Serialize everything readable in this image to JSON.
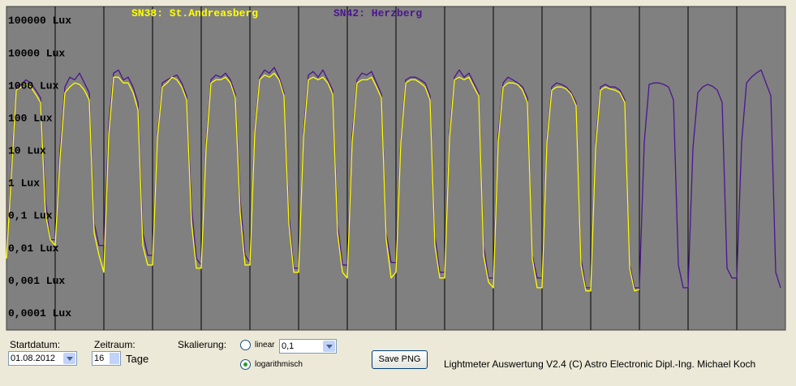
{
  "chart_data": {
    "type": "line",
    "log_scale": true,
    "grid": true,
    "ylim": [
      5e-05,
      450000
    ],
    "yticks": [
      {
        "value": 100000,
        "label": "100000 Lux"
      },
      {
        "value": 10000,
        "label": "10000 Lux"
      },
      {
        "value": 1000,
        "label": "1000 Lux"
      },
      {
        "value": 100,
        "label": "100 Lux"
      },
      {
        "value": 10,
        "label": "10 Lux"
      },
      {
        "value": 1,
        "label": "1 Lux"
      },
      {
        "value": 0.1,
        "label": "0,1 Lux"
      },
      {
        "value": 0.01,
        "label": "0,01 Lux"
      },
      {
        "value": 0.001,
        "label": "0,001 Lux"
      },
      {
        "value": 0.0001,
        "label": "0,0001 Lux"
      }
    ],
    "series": [
      {
        "name": "SN42: Herzberg",
        "color": "#4b1590",
        "values": [
          0.01,
          5,
          1500,
          1800,
          2500,
          2000,
          1200,
          700,
          0.5,
          0.03,
          0.03,
          20,
          1500,
          3000,
          2500,
          4000,
          2000,
          1000,
          0.1,
          0.02,
          0.02,
          100,
          4000,
          5000,
          2500,
          3000,
          1500,
          500,
          0.05,
          0.01,
          0.01,
          50,
          2000,
          2500,
          3000,
          3500,
          2000,
          800,
          0.3,
          0.008,
          0.005,
          30,
          2500,
          3500,
          3000,
          4000,
          2500,
          900,
          0.5,
          0.01,
          0.006,
          80,
          3000,
          5000,
          4000,
          6000,
          3000,
          1000,
          0.2,
          0.004,
          0.004,
          60,
          3500,
          4500,
          3000,
          5000,
          2500,
          1200,
          0.1,
          0.005,
          0.005,
          50,
          2500,
          4000,
          3500,
          4500,
          2000,
          900,
          0.05,
          0.006,
          0.006,
          40,
          2500,
          3000,
          3000,
          2500,
          2000,
          800,
          0.04,
          0.003,
          0.003,
          60,
          3000,
          5000,
          3000,
          4000,
          2000,
          1000,
          0.02,
          0.002,
          0.002,
          50,
          2000,
          3000,
          2500,
          2000,
          1500,
          700,
          0.01,
          0.002,
          0.002,
          40,
          1500,
          2000,
          1800,
          1500,
          1000,
          500,
          0.008,
          0.001,
          0.001,
          30,
          1500,
          1800,
          1500,
          1500,
          1200,
          600,
          0.005,
          0.001,
          0.001,
          30,
          1800,
          2000,
          2000,
          1800,
          1500,
          600,
          0.005,
          0.001,
          0.001,
          20,
          1000,
          1500,
          1800,
          1600,
          1200,
          500,
          0.004,
          0.002,
          0.002,
          30,
          2000,
          3000,
          4000,
          5000,
          2000,
          800,
          0.003,
          0.001
        ]
      },
      {
        "name": "SN38: St.Andreasberg",
        "color": "#ffff00",
        "values": [
          0.008,
          3,
          1200,
          1500,
          1800,
          1500,
          900,
          500,
          0.2,
          0.03,
          0.02,
          10,
          1000,
          1500,
          2000,
          1800,
          1200,
          600,
          0.05,
          0.01,
          0.003,
          50,
          3000,
          3000,
          2000,
          2000,
          1000,
          300,
          0.02,
          0.005,
          0.005,
          40,
          1500,
          2000,
          3000,
          2500,
          1500,
          600,
          0.1,
          0.004,
          0.004,
          20,
          2000,
          2500,
          2500,
          3000,
          2000,
          700,
          0.2,
          0.005,
          0.005,
          60,
          2500,
          3500,
          3000,
          4000,
          2500,
          800,
          0.1,
          0.003,
          0.003,
          40,
          2500,
          3000,
          2500,
          3000,
          2000,
          900,
          0.05,
          0.003,
          0.002,
          30,
          2000,
          2500,
          2500,
          3000,
          1500,
          700,
          0.03,
          0.002,
          0.003,
          30,
          2000,
          2500,
          2500,
          2000,
          1500,
          600,
          0.02,
          0.002,
          0.002,
          40,
          2500,
          3000,
          2500,
          3000,
          1500,
          800,
          0.01,
          0.0015,
          0.001,
          30,
          1500,
          2000,
          2000,
          1800,
          1200,
          500,
          0.008,
          0.001,
          0.001,
          30,
          1200,
          1500,
          1500,
          1300,
          900,
          400,
          0.005,
          0.0008,
          0.0008,
          20,
          1200,
          1500,
          1300,
          1200,
          1000,
          500,
          0.004,
          0.0008,
          0.0009,
          null,
          null,
          null,
          null,
          null,
          null,
          null,
          null,
          null,
          null,
          null,
          null,
          null,
          null,
          null,
          null,
          null,
          null,
          null,
          null,
          null,
          null,
          null,
          null,
          null,
          null,
          null,
          null,
          null
        ]
      }
    ]
  },
  "controls": {
    "startdatum_label": "Startdatum:",
    "startdatum_value": "01.08.2012",
    "zeitraum_label": "Zeitraum:",
    "zeitraum_value": "16",
    "zeitraum_unit": "Tage",
    "skalierung_label": "Skalierung:",
    "linear_label": "linear",
    "linear_value": "0,1",
    "log_label": "logarithmisch",
    "save_button": "Save PNG",
    "footer": "Lightmeter Auswertung V2.4  (C) Astro Electronic Dipl.-Ing. Michael Koch"
  }
}
